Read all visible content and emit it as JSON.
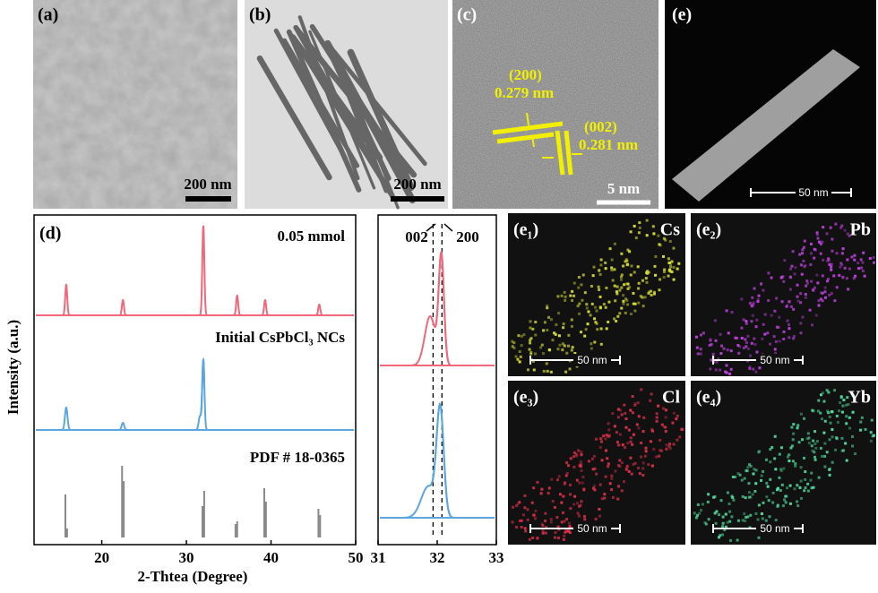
{
  "panels": {
    "a": {
      "label": "(a)",
      "scale": "200 nm"
    },
    "b": {
      "label": "(b)",
      "scale": "200 nm"
    },
    "c": {
      "label": "(c)",
      "scale": "5 nm",
      "plane1": "(200)",
      "spacing1": "0.279 nm",
      "plane2": "(002)",
      "spacing2": "0.281 nm"
    },
    "e": {
      "label": "(e)",
      "scale": "50 nm"
    },
    "e1": {
      "label": "(e₁)",
      "element": "Cs",
      "scale": "50 nm",
      "color": "#d8e030"
    },
    "e2": {
      "label": "(e₂)",
      "element": "Pb",
      "scale": "50 nm",
      "color": "#c040e0"
    },
    "e3": {
      "label": "(e₃)",
      "element": "Cl",
      "scale": "50 nm",
      "color": "#e0304a"
    },
    "e4": {
      "label": "(e₄)",
      "element": "Yb",
      "scale": "50 nm",
      "color": "#50e0a0"
    }
  },
  "chart_data": [
    {
      "type": "xrd",
      "label": "(d)",
      "xlabel": "2-Thtea (Degree)",
      "ylabel": "Intensity (a.u.)",
      "xlim": [
        12,
        50
      ],
      "xticks": [
        20,
        30,
        40,
        50
      ],
      "series": [
        {
          "name": "0.05 mmol",
          "color": "#f0687a",
          "positions": [
            15.8,
            22.5,
            32.0,
            36.0,
            39.3,
            45.7
          ],
          "heights": [
            34,
            17,
            100,
            22,
            17,
            12
          ],
          "widths": [
            0.12,
            0.12,
            0.12,
            0.12,
            0.12,
            0.12
          ]
        },
        {
          "name": "Initial CsPbCl₃ NCs",
          "color": "#5aa6e0",
          "positions": [
            15.8,
            22.5,
            31.6,
            32.0
          ],
          "heights": [
            25,
            8,
            15,
            78
          ],
          "widths": [
            0.15,
            0.15,
            0.15,
            0.13
          ]
        }
      ],
      "reference": {
        "name": "PDF # 18-0365",
        "color": "#888888",
        "positions": [
          15.7,
          15.9,
          22.4,
          22.6,
          31.9,
          32.1,
          35.8,
          36.0,
          39.2,
          39.4,
          45.6,
          45.8
        ],
        "heights": [
          48,
          10,
          80,
          63,
          35,
          52,
          15,
          18,
          55,
          40,
          32,
          25
        ]
      }
    },
    {
      "type": "xrd-zoom",
      "xlim": [
        31,
        33
      ],
      "xticks": [
        31,
        32,
        33
      ],
      "dashed": [
        31.93,
        32.08
      ],
      "annotations": [
        "002",
        "200"
      ],
      "series": [
        {
          "color": "#f0687a",
          "positions": [
            31.88,
            32.07
          ],
          "heights": [
            55,
            120
          ],
          "widths": [
            0.09,
            0.045
          ]
        },
        {
          "color": "#5aa6e0",
          "positions": [
            31.85,
            32.05
          ],
          "heights": [
            35,
            118
          ],
          "widths": [
            0.12,
            0.06
          ]
        }
      ]
    }
  ]
}
